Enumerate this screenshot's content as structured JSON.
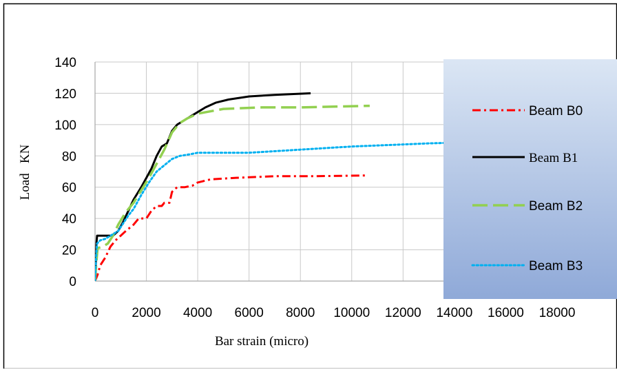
{
  "chart_data": {
    "type": "line",
    "title": "",
    "xlabel": "Bar  strain (micro)",
    "ylabel": "Load   KN",
    "xlim": [
      0,
      18000
    ],
    "ylim": [
      0,
      140
    ],
    "x_ticks": [
      "0",
      "2000",
      "4000",
      "6000",
      "8000",
      "10000",
      "12000",
      "14000",
      "16000",
      "18000"
    ],
    "y_ticks": [
      "0",
      "20",
      "40",
      "60",
      "80",
      "100",
      "120",
      "140"
    ],
    "grid": true,
    "legend_position": "right",
    "series": [
      {
        "name": "Beam B0",
        "color": "#ff0000",
        "style": "dash-dot",
        "points": [
          [
            0,
            0
          ],
          [
            100,
            4
          ],
          [
            200,
            10
          ],
          [
            400,
            15
          ],
          [
            600,
            22
          ],
          [
            800,
            26
          ],
          [
            1000,
            29
          ],
          [
            1200,
            32
          ],
          [
            1500,
            36
          ],
          [
            1700,
            40
          ],
          [
            2000,
            40
          ],
          [
            2200,
            45
          ],
          [
            2400,
            48
          ],
          [
            2600,
            48
          ],
          [
            2700,
            50
          ],
          [
            2900,
            50
          ],
          [
            3000,
            57
          ],
          [
            3200,
            60
          ],
          [
            3500,
            60
          ],
          [
            3800,
            61
          ],
          [
            4000,
            63
          ],
          [
            4500,
            65
          ],
          [
            5500,
            66
          ],
          [
            7000,
            67
          ],
          [
            8500,
            67
          ],
          [
            10600,
            67.5
          ]
        ]
      },
      {
        "name": "Beam B1",
        "color": "#000000",
        "style": "solid",
        "points": [
          [
            0,
            0
          ],
          [
            30,
            10
          ],
          [
            60,
            25
          ],
          [
            80,
            29
          ],
          [
            500,
            29
          ],
          [
            700,
            29
          ],
          [
            900,
            32
          ],
          [
            1100,
            38
          ],
          [
            1300,
            45
          ],
          [
            1500,
            52
          ],
          [
            1800,
            60
          ],
          [
            2000,
            66
          ],
          [
            2200,
            72
          ],
          [
            2400,
            80
          ],
          [
            2600,
            86
          ],
          [
            2800,
            88
          ],
          [
            3000,
            96
          ],
          [
            3200,
            100
          ],
          [
            3500,
            103
          ],
          [
            3800,
            106
          ],
          [
            4000,
            108
          ],
          [
            4300,
            111
          ],
          [
            4700,
            114
          ],
          [
            5200,
            116
          ],
          [
            6000,
            118
          ],
          [
            7000,
            119
          ],
          [
            8400,
            120
          ]
        ]
      },
      {
        "name": "Beam B2",
        "color": "#92d050",
        "style": "long-dash",
        "points": [
          [
            0,
            0
          ],
          [
            50,
            12
          ],
          [
            100,
            21
          ],
          [
            300,
            22
          ],
          [
            500,
            24
          ],
          [
            700,
            29
          ],
          [
            900,
            36
          ],
          [
            1200,
            44
          ],
          [
            1500,
            50
          ],
          [
            1800,
            58
          ],
          [
            2100,
            66
          ],
          [
            2400,
            75
          ],
          [
            2700,
            84
          ],
          [
            3000,
            95
          ],
          [
            3300,
            101
          ],
          [
            3600,
            104
          ],
          [
            4000,
            107
          ],
          [
            5000,
            110
          ],
          [
            6500,
            111
          ],
          [
            8000,
            111
          ],
          [
            10700,
            112
          ]
        ]
      },
      {
        "name": "Beam B3",
        "color": "#00b0f0",
        "style": "dotted",
        "points": [
          [
            0,
            0
          ],
          [
            40,
            15
          ],
          [
            80,
            24
          ],
          [
            200,
            26
          ],
          [
            400,
            27
          ],
          [
            700,
            30
          ],
          [
            900,
            32
          ],
          [
            1100,
            37
          ],
          [
            1300,
            42
          ],
          [
            1500,
            46
          ],
          [
            1800,
            55
          ],
          [
            2100,
            63
          ],
          [
            2400,
            70
          ],
          [
            2700,
            74
          ],
          [
            3000,
            78
          ],
          [
            3300,
            80
          ],
          [
            3700,
            81
          ],
          [
            4000,
            82
          ],
          [
            5000,
            82
          ],
          [
            6000,
            82
          ],
          [
            7000,
            83
          ],
          [
            8000,
            84
          ],
          [
            9000,
            85
          ],
          [
            10000,
            86
          ],
          [
            11500,
            87
          ],
          [
            13000,
            88
          ],
          [
            15300,
            89
          ]
        ]
      }
    ]
  }
}
